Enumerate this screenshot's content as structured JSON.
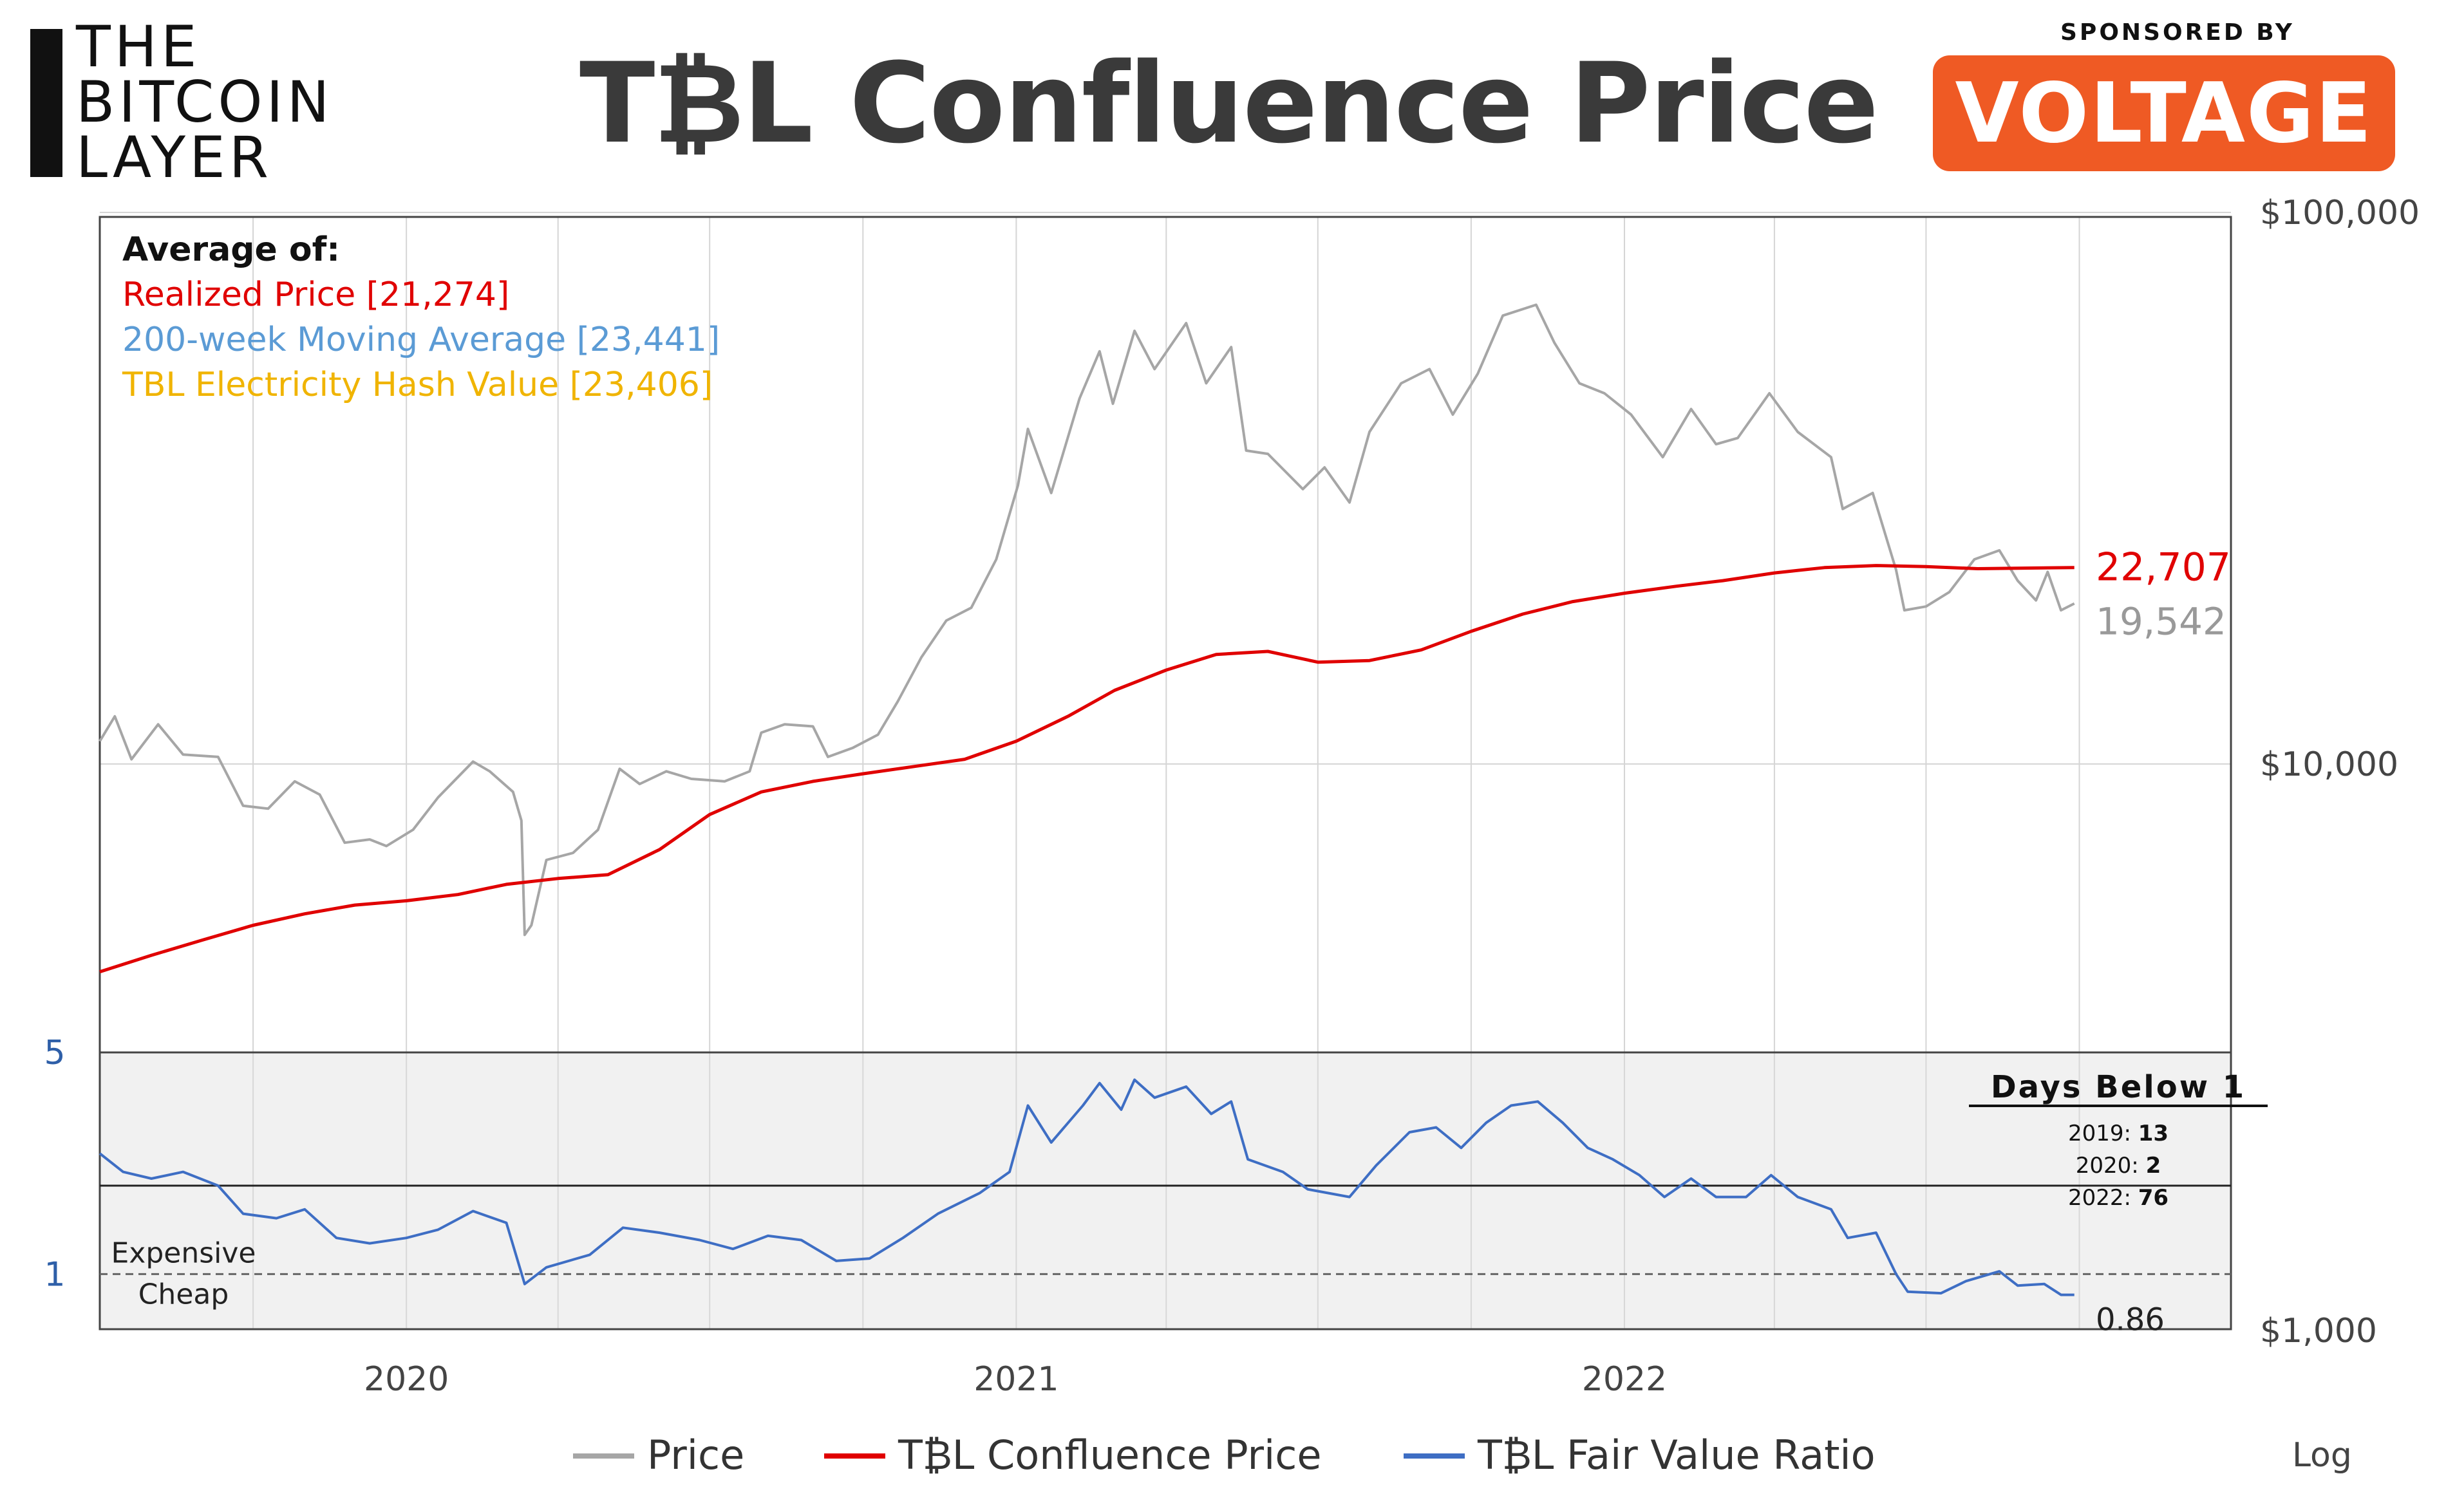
{
  "logo": {
    "line1": "THE",
    "line2": "BITCOIN",
    "line3": "LAYER"
  },
  "title": "T₿L Confluence Price",
  "sponsor": {
    "label": "SPONSORED BY",
    "name": "VOLTAGE",
    "color": "#ef5a24"
  },
  "chart_data": [
    {
      "type": "line",
      "id": "price-panel",
      "yscale": "log",
      "ylim": [
        3000,
        100000
      ],
      "y_ticks": [
        {
          "value": 100000,
          "label": "$100,000"
        },
        {
          "value": 10000,
          "label": "$10,000"
        }
      ],
      "grid": true,
      "annotation_title": "Average of:",
      "annotations": [
        {
          "text": "Realized Price [21,274]",
          "color": "#e00000"
        },
        {
          "text": "200-week Moving Average [23,441]",
          "color": "#5b9bd5"
        },
        {
          "text": "TBL Electricity Hash Value [23,406]",
          "color": "#f0b400"
        }
      ],
      "series": [
        {
          "name": "Price",
          "color": "#a6a6a6",
          "end_label": "19,542",
          "points": [
            [
              "2019-07-01",
              11000
            ],
            [
              "2019-07-10",
              12200
            ],
            [
              "2019-07-20",
              10200
            ],
            [
              "2019-08-05",
              11800
            ],
            [
              "2019-08-20",
              10400
            ],
            [
              "2019-09-10",
              10300
            ],
            [
              "2019-09-25",
              8400
            ],
            [
              "2019-10-10",
              8300
            ],
            [
              "2019-10-26",
              9300
            ],
            [
              "2019-11-10",
              8800
            ],
            [
              "2019-11-25",
              7200
            ],
            [
              "2019-12-10",
              7300
            ],
            [
              "2019-12-20",
              7100
            ],
            [
              "2020-01-05",
              7600
            ],
            [
              "2020-01-20",
              8700
            ],
            [
              "2020-02-10",
              10100
            ],
            [
              "2020-02-20",
              9700
            ],
            [
              "2020-03-05",
              8900
            ],
            [
              "2020-03-10",
              7900
            ],
            [
              "2020-03-12",
              4900
            ],
            [
              "2020-03-16",
              5100
            ],
            [
              "2020-03-25",
              6700
            ],
            [
              "2020-04-10",
              6900
            ],
            [
              "2020-04-25",
              7600
            ],
            [
              "2020-05-08",
              9800
            ],
            [
              "2020-05-20",
              9200
            ],
            [
              "2020-06-05",
              9700
            ],
            [
              "2020-06-20",
              9400
            ],
            [
              "2020-07-10",
              9300
            ],
            [
              "2020-07-25",
              9700
            ],
            [
              "2020-08-01",
              11400
            ],
            [
              "2020-08-15",
              11800
            ],
            [
              "2020-09-01",
              11700
            ],
            [
              "2020-09-10",
              10300
            ],
            [
              "2020-09-25",
              10700
            ],
            [
              "2020-10-10",
              11300
            ],
            [
              "2020-10-22",
              13000
            ],
            [
              "2020-11-05",
              15600
            ],
            [
              "2020-11-20",
              18200
            ],
            [
              "2020-12-05",
              19200
            ],
            [
              "2020-12-20",
              23500
            ],
            [
              "2021-01-02",
              32000
            ],
            [
              "2021-01-08",
              40500
            ],
            [
              "2021-01-22",
              31000
            ],
            [
              "2021-02-08",
              46000
            ],
            [
              "2021-02-20",
              56000
            ],
            [
              "2021-02-28",
              45000
            ],
            [
              "2021-03-13",
              61000
            ],
            [
              "2021-03-25",
              52000
            ],
            [
              "2021-04-13",
              63000
            ],
            [
              "2021-04-25",
              49000
            ],
            [
              "2021-05-10",
              57000
            ],
            [
              "2021-05-19",
              37000
            ],
            [
              "2021-06-01",
              36500
            ],
            [
              "2021-06-22",
              31500
            ],
            [
              "2021-07-05",
              34500
            ],
            [
              "2021-07-20",
              29800
            ],
            [
              "2021-08-01",
              40000
            ],
            [
              "2021-08-20",
              49000
            ],
            [
              "2021-09-06",
              52000
            ],
            [
              "2021-09-20",
              43000
            ],
            [
              "2021-10-05",
              51000
            ],
            [
              "2021-10-20",
              65000
            ],
            [
              "2021-11-09",
              68000
            ],
            [
              "2021-11-20",
              58000
            ],
            [
              "2021-12-05",
              49000
            ],
            [
              "2021-12-20",
              47000
            ],
            [
              "2022-01-05",
              43000
            ],
            [
              "2022-01-24",
              36000
            ],
            [
              "2022-02-10",
              44000
            ],
            [
              "2022-02-25",
              38000
            ],
            [
              "2022-03-10",
              39000
            ],
            [
              "2022-03-29",
              47000
            ],
            [
              "2022-04-15",
              40000
            ],
            [
              "2022-05-05",
              36000
            ],
            [
              "2022-05-12",
              29000
            ],
            [
              "2022-05-30",
              31000
            ],
            [
              "2022-06-13",
              22500
            ],
            [
              "2022-06-18",
              19000
            ],
            [
              "2022-07-01",
              19300
            ],
            [
              "2022-07-15",
              20500
            ],
            [
              "2022-07-30",
              23500
            ],
            [
              "2022-08-14",
              24400
            ],
            [
              "2022-08-25",
              21500
            ],
            [
              "2022-09-05",
              19800
            ],
            [
              "2022-09-12",
              22300
            ],
            [
              "2022-09-20",
              19000
            ],
            [
              "2022-09-28",
              19542
            ]
          ]
        },
        {
          "name": "T₿L Confluence Price",
          "color": "#e00000",
          "end_label": "22,707",
          "points": [
            [
              "2019-07-01",
              4200
            ],
            [
              "2019-08-01",
              4500
            ],
            [
              "2019-09-01",
              4800
            ],
            [
              "2019-10-01",
              5100
            ],
            [
              "2019-11-01",
              5350
            ],
            [
              "2019-12-01",
              5550
            ],
            [
              "2020-01-01",
              5650
            ],
            [
              "2020-02-01",
              5800
            ],
            [
              "2020-03-01",
              6050
            ],
            [
              "2020-04-01",
              6200
            ],
            [
              "2020-05-01",
              6300
            ],
            [
              "2020-06-01",
              7000
            ],
            [
              "2020-07-01",
              8100
            ],
            [
              "2020-08-01",
              8900
            ],
            [
              "2020-09-01",
              9300
            ],
            [
              "2020-10-01",
              9600
            ],
            [
              "2020-11-01",
              9900
            ],
            [
              "2020-12-01",
              10200
            ],
            [
              "2021-01-01",
              11000
            ],
            [
              "2021-02-01",
              12200
            ],
            [
              "2021-03-01",
              13600
            ],
            [
              "2021-04-01",
              14800
            ],
            [
              "2021-05-01",
              15800
            ],
            [
              "2021-06-01",
              16000
            ],
            [
              "2021-07-01",
              15300
            ],
            [
              "2021-08-01",
              15400
            ],
            [
              "2021-09-01",
              16100
            ],
            [
              "2021-10-01",
              17400
            ],
            [
              "2021-11-01",
              18700
            ],
            [
              "2021-12-01",
              19700
            ],
            [
              "2022-01-01",
              20400
            ],
            [
              "2022-02-01",
              21000
            ],
            [
              "2022-03-01",
              21500
            ],
            [
              "2022-04-01",
              22200
            ],
            [
              "2022-05-01",
              22700
            ],
            [
              "2022-06-01",
              22900
            ],
            [
              "2022-07-01",
              22800
            ],
            [
              "2022-08-01",
              22600
            ],
            [
              "2022-09-28",
              22707
            ]
          ]
        }
      ]
    },
    {
      "type": "line",
      "id": "ratio-panel",
      "yscale": "log",
      "ylim": [
        0.67,
        5
      ],
      "y_ticks": [
        {
          "value": 5,
          "label": "5"
        },
        {
          "value": 1,
          "label": "1"
        }
      ],
      "x_ticks": [
        "2020",
        "2021",
        "2022"
      ],
      "reference_lines": [
        {
          "value": 1,
          "style": "dashed",
          "label_above": "Expensive",
          "label_below": "Cheap"
        },
        {
          "value": 1.9,
          "style": "solid"
        }
      ],
      "inset": {
        "title": "Days Below 1",
        "rows": [
          {
            "year": "2019:",
            "days": "13"
          },
          {
            "year": "2020:",
            "days": "2"
          },
          {
            "year": "2022:",
            "days": "76"
          }
        ]
      },
      "series": [
        {
          "name": "T₿L Fair Value Ratio",
          "color": "#3e6ec4",
          "end_label": "0.86",
          "points": [
            [
              "2019-07-01",
              2.4
            ],
            [
              "2019-07-15",
              2.1
            ],
            [
              "2019-08-01",
              2.0
            ],
            [
              "2019-08-20",
              2.1
            ],
            [
              "2019-09-10",
              1.9
            ],
            [
              "2019-09-25",
              1.55
            ],
            [
              "2019-10-15",
              1.5
            ],
            [
              "2019-11-01",
              1.6
            ],
            [
              "2019-11-20",
              1.3
            ],
            [
              "2019-12-10",
              1.25
            ],
            [
              "2020-01-01",
              1.3
            ],
            [
              "2020-01-20",
              1.38
            ],
            [
              "2020-02-10",
              1.58
            ],
            [
              "2020-03-01",
              1.45
            ],
            [
              "2020-03-12",
              0.93
            ],
            [
              "2020-03-25",
              1.05
            ],
            [
              "2020-04-20",
              1.15
            ],
            [
              "2020-05-10",
              1.4
            ],
            [
              "2020-06-01",
              1.35
            ],
            [
              "2020-06-25",
              1.28
            ],
            [
              "2020-07-15",
              1.2
            ],
            [
              "2020-08-05",
              1.32
            ],
            [
              "2020-08-25",
              1.28
            ],
            [
              "2020-09-15",
              1.1
            ],
            [
              "2020-10-05",
              1.12
            ],
            [
              "2020-10-25",
              1.3
            ],
            [
              "2020-11-15",
              1.55
            ],
            [
              "2020-12-10",
              1.8
            ],
            [
              "2020-12-28",
              2.1
            ],
            [
              "2021-01-08",
              3.4
            ],
            [
              "2021-01-22",
              2.6
            ],
            [
              "2021-02-10",
              3.4
            ],
            [
              "2021-02-20",
              4.0
            ],
            [
              "2021-03-05",
              3.3
            ],
            [
              "2021-03-13",
              4.1
            ],
            [
              "2021-03-25",
              3.6
            ],
            [
              "2021-04-13",
              3.9
            ],
            [
              "2021-04-28",
              3.2
            ],
            [
              "2021-05-10",
              3.5
            ],
            [
              "2021-05-20",
              2.3
            ],
            [
              "2021-06-10",
              2.1
            ],
            [
              "2021-06-25",
              1.85
            ],
            [
              "2021-07-20",
              1.75
            ],
            [
              "2021-08-05",
              2.2
            ],
            [
              "2021-08-25",
              2.8
            ],
            [
              "2021-09-10",
              2.9
            ],
            [
              "2021-09-25",
              2.5
            ],
            [
              "2021-10-10",
              3.0
            ],
            [
              "2021-10-25",
              3.4
            ],
            [
              "2021-11-10",
              3.5
            ],
            [
              "2021-11-25",
              3.0
            ],
            [
              "2021-12-10",
              2.5
            ],
            [
              "2021-12-25",
              2.3
            ],
            [
              "2022-01-10",
              2.05
            ],
            [
              "2022-01-25",
              1.75
            ],
            [
              "2022-02-10",
              2.0
            ],
            [
              "2022-02-25",
              1.75
            ],
            [
              "2022-03-15",
              1.75
            ],
            [
              "2022-03-30",
              2.05
            ],
            [
              "2022-04-15",
              1.75
            ],
            [
              "2022-05-05",
              1.6
            ],
            [
              "2022-05-15",
              1.3
            ],
            [
              "2022-06-01",
              1.35
            ],
            [
              "2022-06-13",
              1.0
            ],
            [
              "2022-06-20",
              0.88
            ],
            [
              "2022-07-10",
              0.87
            ],
            [
              "2022-07-25",
              0.95
            ],
            [
              "2022-08-14",
              1.02
            ],
            [
              "2022-08-25",
              0.92
            ],
            [
              "2022-09-10",
              0.93
            ],
            [
              "2022-09-20",
              0.86
            ],
            [
              "2022-09-28",
              0.86
            ]
          ]
        }
      ]
    }
  ],
  "axis_extra": {
    "bottom_value_label": "$1,000",
    "scale_label": "Log"
  },
  "legend": [
    {
      "label": "Price",
      "color": "#a6a6a6"
    },
    {
      "label": "T₿L Confluence Price",
      "color": "#e00000"
    },
    {
      "label": "T₿L Fair Value Ratio",
      "color": "#3e6ec4"
    }
  ]
}
